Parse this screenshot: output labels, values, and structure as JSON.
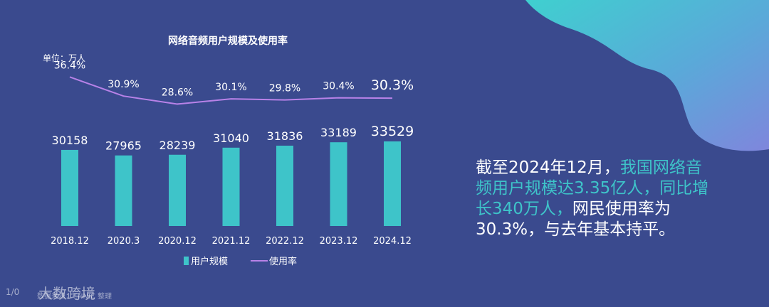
{
  "colors": {
    "background": "#3a4a8e",
    "bar": "#3ec4c9",
    "line": "#b882e8",
    "text": "#ffffff",
    "highlight": "#3ec4c9"
  },
  "chart_data": {
    "type": "bar",
    "title": "网络音频用户规模及使用率",
    "unit_label": "单位：万人",
    "categories": [
      "2018.12",
      "2020.3",
      "2020.12",
      "2021.12",
      "2022.12",
      "2023.12",
      "2024.12"
    ],
    "series": [
      {
        "name": "用户规模",
        "type": "bar",
        "values": [
          30158,
          27965,
          28239,
          31040,
          31836,
          33189,
          33529
        ],
        "labels": [
          "30158",
          "27965",
          "28239",
          "31040",
          "31836",
          "33189",
          "33529"
        ]
      },
      {
        "name": "使用率",
        "type": "line",
        "values": [
          36.4,
          30.9,
          28.6,
          30.1,
          29.8,
          30.4,
          30.3
        ],
        "labels": [
          "36.4%",
          "30.9%",
          "28.6%",
          "30.1%",
          "29.8%",
          "30.4%",
          "30.3%"
        ]
      }
    ],
    "legend_position": "bottom-center",
    "grid": false
  },
  "summary": {
    "part1": "截至2024年12月，",
    "part2": "我国网络音频用户规模达3.35亿人，同比增长340万人，",
    "part3": "网民使用率为30.3%，与去年基本持平。"
  },
  "watermark": {
    "logo_text": "1/0",
    "brand": "大数跨境",
    "source": "数据来源：CNNIC 整理"
  }
}
